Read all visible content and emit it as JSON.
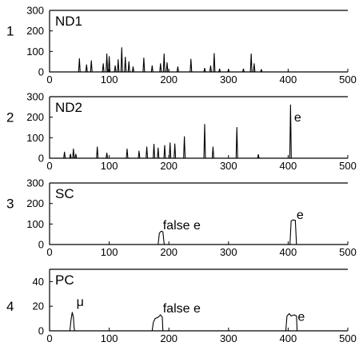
{
  "chart_data": [
    {
      "type": "line",
      "panel_number": "1",
      "title": "ND1",
      "xlim": [
        0,
        500
      ],
      "ylim": [
        0,
        300
      ],
      "x_ticks": [
        0,
        100,
        200,
        300,
        400,
        500
      ],
      "y_ticks": [
        0,
        100,
        200,
        300
      ],
      "annotations": [],
      "peaks": [
        [
          50,
          65
        ],
        [
          62,
          35
        ],
        [
          70,
          55
        ],
        [
          90,
          40
        ],
        [
          96,
          88
        ],
        [
          100,
          75
        ],
        [
          110,
          30
        ],
        [
          115,
          60
        ],
        [
          121,
          118
        ],
        [
          127,
          72
        ],
        [
          133,
          50
        ],
        [
          140,
          25
        ],
        [
          158,
          68
        ],
        [
          172,
          30
        ],
        [
          186,
          40
        ],
        [
          192,
          88
        ],
        [
          197,
          45
        ],
        [
          215,
          25
        ],
        [
          237,
          62
        ],
        [
          260,
          18
        ],
        [
          270,
          30
        ],
        [
          276,
          90
        ],
        [
          285,
          15
        ],
        [
          300,
          12
        ],
        [
          325,
          15
        ],
        [
          338,
          88
        ],
        [
          343,
          40
        ],
        [
          355,
          12
        ]
      ]
    },
    {
      "type": "line",
      "panel_number": "2",
      "title": "ND2",
      "xlim": [
        0,
        500
      ],
      "ylim": [
        0,
        300
      ],
      "x_ticks": [
        0,
        100,
        200,
        300,
        400,
        500
      ],
      "y_ticks": [
        0,
        100,
        200,
        300
      ],
      "annotations": [
        {
          "text": "e",
          "x": 410,
          "y": 180
        }
      ],
      "peaks": [
        [
          25,
          30
        ],
        [
          35,
          20
        ],
        [
          40,
          45
        ],
        [
          44,
          20
        ],
        [
          80,
          55
        ],
        [
          96,
          25
        ],
        [
          130,
          45
        ],
        [
          150,
          35
        ],
        [
          163,
          55
        ],
        [
          175,
          68
        ],
        [
          182,
          50
        ],
        [
          193,
          62
        ],
        [
          202,
          75
        ],
        [
          210,
          70
        ],
        [
          226,
          105
        ],
        [
          260,
          165
        ],
        [
          274,
          55
        ],
        [
          314,
          150
        ],
        [
          350,
          18
        ],
        [
          404,
          260
        ]
      ]
    },
    {
      "type": "line",
      "panel_number": "3",
      "title": "SC",
      "xlim": [
        0,
        500
      ],
      "ylim": [
        0,
        300
      ],
      "x_ticks": [
        0,
        100,
        200,
        300,
        400,
        500
      ],
      "y_ticks": [
        0,
        100,
        200,
        300
      ],
      "annotations": [
        {
          "text": "false e",
          "x": 190,
          "y": 75
        },
        {
          "text": "e",
          "x": 414,
          "y": 125
        }
      ],
      "profile": [
        [
          0,
          0
        ],
        [
          182,
          0
        ],
        [
          184,
          55
        ],
        [
          187,
          65
        ],
        [
          190,
          62
        ],
        [
          192,
          5
        ],
        [
          193,
          0
        ],
        [
          403,
          0
        ],
        [
          405,
          115
        ],
        [
          408,
          120
        ],
        [
          412,
          118
        ],
        [
          414,
          0
        ],
        [
          500,
          0
        ]
      ]
    },
    {
      "type": "line",
      "panel_number": "4",
      "title": "PC",
      "xlim": [
        0,
        500
      ],
      "ylim": [
        0,
        50
      ],
      "x_ticks": [
        0,
        100,
        200,
        300,
        400,
        500
      ],
      "y_ticks": [
        0,
        20,
        40
      ],
      "annotations": [
        {
          "text": "μ",
          "x": 45,
          "y": 20
        },
        {
          "text": "false e",
          "x": 190,
          "y": 15
        },
        {
          "text": "e",
          "x": 416,
          "y": 8
        }
      ],
      "profile": [
        [
          0,
          0
        ],
        [
          34,
          0
        ],
        [
          36,
          9
        ],
        [
          38,
          15
        ],
        [
          40,
          11
        ],
        [
          41,
          3
        ],
        [
          42,
          0
        ],
        [
          172,
          0
        ],
        [
          174,
          7
        ],
        [
          177,
          10
        ],
        [
          182,
          11
        ],
        [
          186,
          13
        ],
        [
          189,
          11
        ],
        [
          190,
          0
        ],
        [
          396,
          0
        ],
        [
          398,
          12
        ],
        [
          402,
          14
        ],
        [
          405,
          12
        ],
        [
          410,
          13
        ],
        [
          414,
          12
        ],
        [
          415,
          0
        ],
        [
          500,
          0
        ]
      ]
    }
  ]
}
